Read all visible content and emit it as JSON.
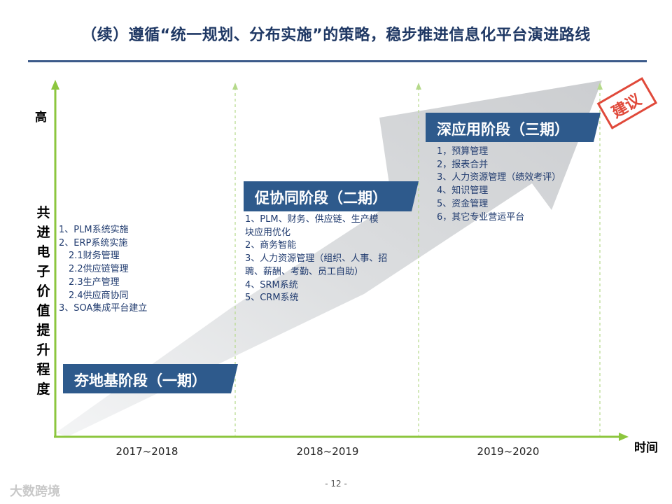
{
  "title": "（续）遵循“统一规划、分布实施”的策略，稳步推进信息化平台演进路线",
  "y_axis": {
    "top_label": "高",
    "label": "共进电子价值提升程度"
  },
  "x_axis": {
    "label": "时间",
    "periods": [
      "2017~2018",
      "2018~2019",
      "2019~2020"
    ]
  },
  "stages": [
    {
      "name": "夯地基阶段（一期）",
      "items": [
        "1、PLM系统实施",
        "2、ERP系统实施",
        "  2.1财务管理",
        "  2.2供应链管理",
        "  2.3生产管理",
        "  2.4供应商协同",
        "3、SOA集成平台建立"
      ]
    },
    {
      "name": "促协同阶段（二期）",
      "items": [
        "1、PLM、财务、供应链、生产模",
        "块应用优化",
        "2、商务智能",
        "3、人力资源管理（组织、人事、招",
        "聘、薪酬、考勤、员工自助）",
        "4、SRM系统",
        "5、CRM系统"
      ]
    },
    {
      "name": "深应用阶段（三期）",
      "items": [
        "1，预算管理",
        "2，报表合并",
        "3、人力资源管理（绩效考评）",
        "4、知识管理",
        "5、资金管理",
        "6，其它专业营运平台"
      ]
    }
  ],
  "stamp": "建议",
  "page_number": "- 12 -",
  "watermark": "大数跨境",
  "colors": {
    "axis": "#8cc63e",
    "stage_fill": "#2e5a8c",
    "arrow": "#d4d6d8",
    "title": "#1f3864",
    "stamp": "#e0493a"
  }
}
